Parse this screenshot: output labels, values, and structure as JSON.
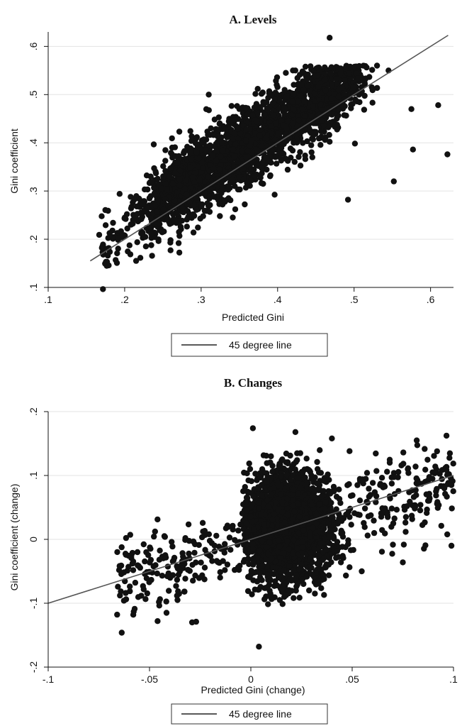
{
  "chart_data": [
    {
      "type": "scatter",
      "title": "A. Levels",
      "xlabel": "Predicted Gini",
      "ylabel": "Gini coefficient",
      "xlim": [
        0.1,
        0.63
      ],
      "ylim": [
        0.1,
        0.63
      ],
      "xticks": [
        0.1,
        0.2,
        0.3,
        0.4,
        0.5,
        0.6
      ],
      "yticks": [
        0.1,
        0.2,
        0.3,
        0.4,
        0.5,
        0.6
      ],
      "xtick_labels": [
        ".1",
        ".2",
        ".3",
        ".4",
        ".5",
        ".6"
      ],
      "ytick_labels": [
        ".1",
        ".2",
        ".3",
        ".4",
        ".5",
        ".6"
      ],
      "grid": "horizontal",
      "legend": {
        "position": "bottom",
        "entries": [
          "45 degree line"
        ]
      },
      "reference_line": {
        "name": "45 degree line",
        "x": [
          0.155,
          0.623
        ],
        "y": [
          0.155,
          0.623
        ]
      },
      "point_cloud": {
        "x_range": [
          0.165,
          0.62
        ],
        "y_range": [
          0.155,
          0.62
        ],
        "relation": "y ≈ x + 0.035, residual spread ≈ ±0.06",
        "x_center_range": [
          0.24,
          0.5
        ]
      },
      "notable_points": [
        {
          "x": 0.172,
          "y": 0.168
        },
        {
          "x": 0.178,
          "y": 0.166
        },
        {
          "x": 0.215,
          "y": 0.155
        },
        {
          "x": 0.26,
          "y": 0.177
        },
        {
          "x": 0.468,
          "y": 0.618
        },
        {
          "x": 0.42,
          "y": 0.55
        },
        {
          "x": 0.31,
          "y": 0.5
        },
        {
          "x": 0.61,
          "y": 0.478
        },
        {
          "x": 0.622,
          "y": 0.376
        },
        {
          "x": 0.577,
          "y": 0.386
        },
        {
          "x": 0.575,
          "y": 0.47
        },
        {
          "x": 0.552,
          "y": 0.32
        },
        {
          "x": 0.492,
          "y": 0.282
        },
        {
          "x": 0.545,
          "y": 0.55
        },
        {
          "x": 0.53,
          "y": 0.56
        }
      ]
    },
    {
      "type": "scatter",
      "title": "B. Changes",
      "xlabel": "Predicted Gini (change)",
      "ylabel": "Gini coefficient (change)",
      "xlim": [
        -0.1,
        0.1
      ],
      "ylim": [
        -0.2,
        0.2
      ],
      "xticks": [
        -0.1,
        -0.05,
        0,
        0.05,
        0.1
      ],
      "yticks": [
        -0.2,
        -0.1,
        0,
        0.1,
        0.2
      ],
      "xtick_labels": [
        "-.1",
        "-.05",
        "0",
        ".05",
        ".1"
      ],
      "ytick_labels": [
        "-.2",
        "-.1",
        "0",
        ".1",
        ".2"
      ],
      "grid": "horizontal",
      "legend": {
        "position": "bottom",
        "entries": [
          "45 degree line"
        ]
      },
      "reference_line": {
        "name": "45 degree line",
        "x": [
          -0.1,
          0.1
        ],
        "y": [
          -0.1,
          0.1
        ]
      },
      "point_cloud": {
        "x_range": [
          -0.067,
          0.1
        ],
        "y_range": [
          -0.168,
          0.174
        ],
        "dense_core": {
          "x_range": [
            -0.002,
            0.048
          ],
          "y_range": [
            -0.105,
            0.145
          ]
        }
      },
      "notable_points": [
        {
          "x": 0.004,
          "y": -0.168
        },
        {
          "x": 0.001,
          "y": 0.174
        },
        {
          "x": 0.022,
          "y": 0.168
        },
        {
          "x": -0.046,
          "y": -0.128
        },
        {
          "x": -0.058,
          "y": -0.118
        },
        {
          "x": -0.029,
          "y": -0.13
        },
        {
          "x": -0.027,
          "y": -0.129
        },
        {
          "x": -0.065,
          "y": -0.048
        },
        {
          "x": 0.099,
          "y": -0.01
        },
        {
          "x": 0.099,
          "y": 0.085
        },
        {
          "x": 0.091,
          "y": 0.114
        },
        {
          "x": 0.04,
          "y": 0.158
        },
        {
          "x": 0.075,
          "y": -0.036
        },
        {
          "x": 0.062,
          "y": 0.107
        },
        {
          "x": 0.086,
          "y": 0.09
        }
      ]
    }
  ]
}
